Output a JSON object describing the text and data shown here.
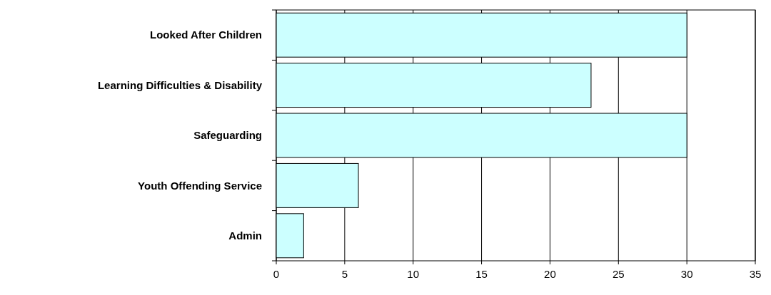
{
  "chart_data": {
    "type": "bar",
    "orientation": "horizontal",
    "categories": [
      "Looked After Children",
      "Learning Difficulties & Disability",
      "Safeguarding",
      "Youth Offending Service",
      "Admin"
    ],
    "values": [
      30,
      23,
      30,
      6,
      2
    ],
    "color": "#ccffff",
    "xlim": [
      0,
      35
    ],
    "xticks": [
      0,
      5,
      10,
      15,
      20,
      25,
      30,
      35
    ],
    "grid": "x"
  }
}
